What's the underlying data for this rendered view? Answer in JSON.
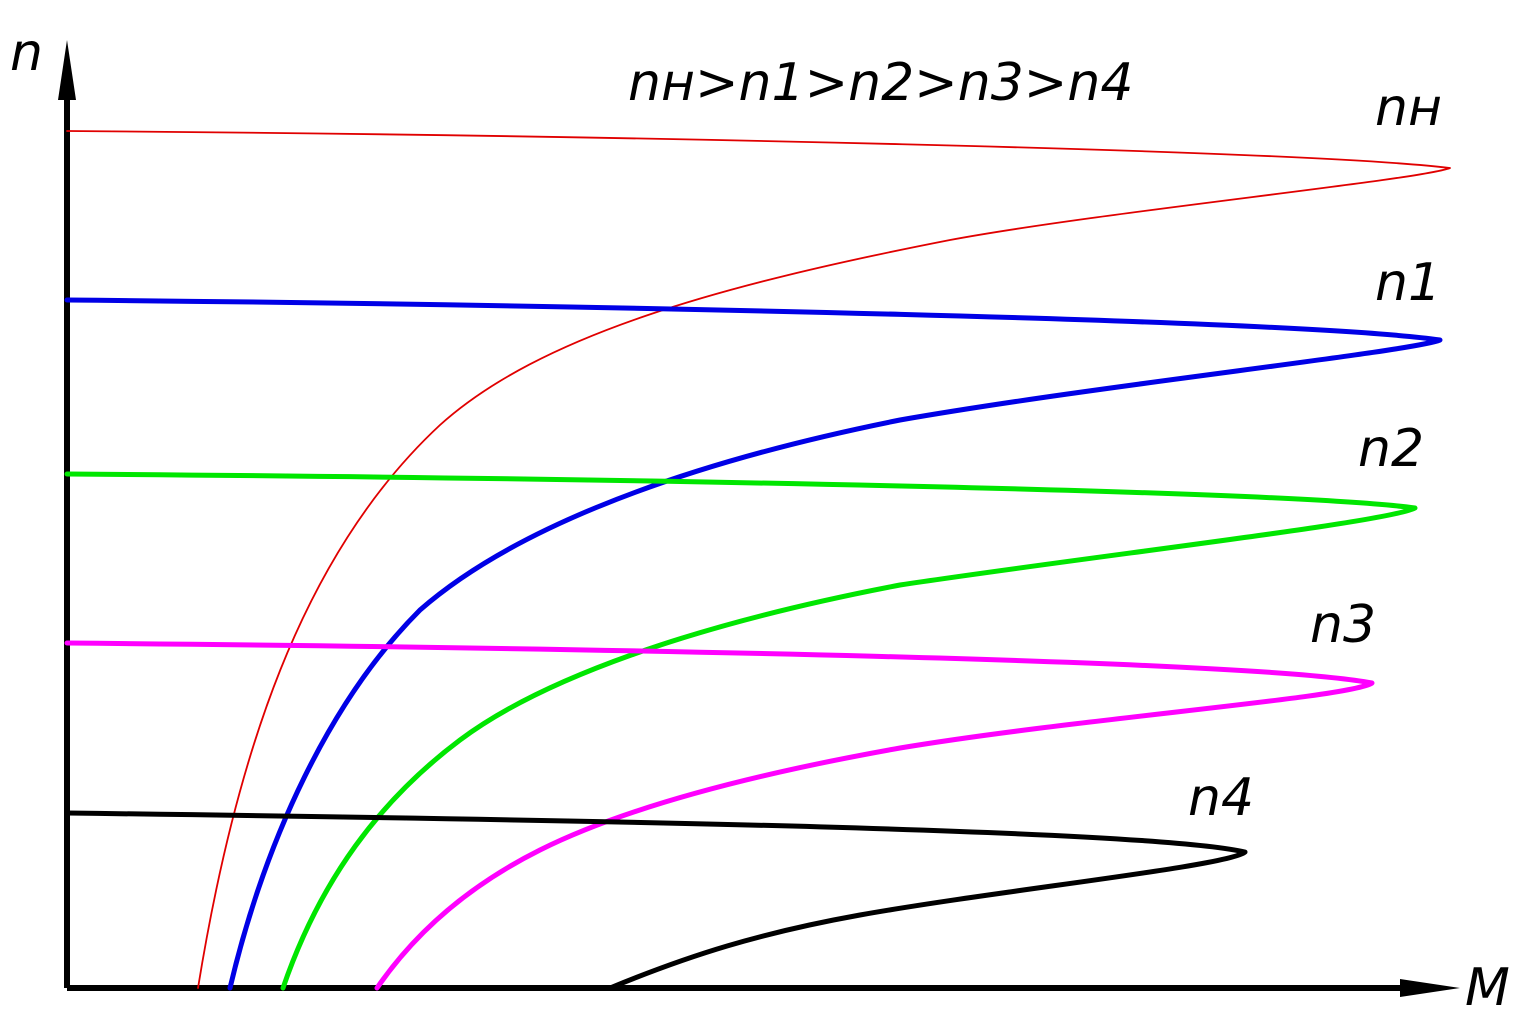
{
  "axes": {
    "y_label": "n",
    "x_label": "M"
  },
  "relation": "nн>n1>n2>n3>n4",
  "curves": [
    {
      "label": "nн"
    },
    {
      "label": "n1"
    },
    {
      "label": "n2"
    },
    {
      "label": "n3"
    },
    {
      "label": "n4"
    }
  ]
}
